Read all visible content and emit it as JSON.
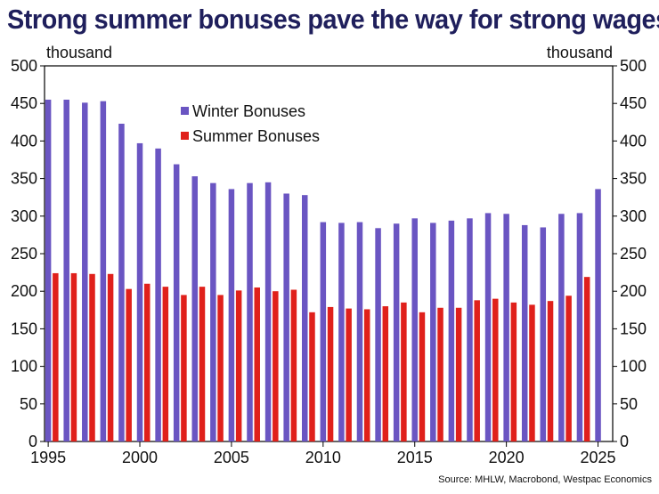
{
  "chart_data": {
    "type": "bar",
    "title": "Strong summer bonuses pave the way for strong wages",
    "y_unit_left": "thousand",
    "y_unit_right": "thousand",
    "ylim": [
      0,
      500
    ],
    "y_ticks": [
      0,
      50,
      100,
      150,
      200,
      250,
      300,
      350,
      400,
      450,
      500
    ],
    "x_tick_labels": [
      "1995",
      "2000",
      "2005",
      "2010",
      "2015",
      "2020",
      "2025"
    ],
    "x_tick_values": [
      1995,
      2000,
      2005,
      2010,
      2015,
      2020,
      2025
    ],
    "grid": false,
    "legend_position": "top-center",
    "source": "Source: MHLW, Macrobond, Westpac Economics",
    "series": [
      {
        "name": "Winter Bonuses",
        "color": "#6a55c2",
        "points": [
          [
            1995.0,
            455
          ],
          [
            1996.0,
            455
          ],
          [
            1997.0,
            451
          ],
          [
            1998.0,
            453
          ],
          [
            1999.0,
            423
          ],
          [
            2000.0,
            397
          ],
          [
            2001.0,
            390
          ],
          [
            2002.0,
            369
          ],
          [
            2003.0,
            353
          ],
          [
            2004.0,
            344
          ],
          [
            2005.0,
            336
          ],
          [
            2006.0,
            344
          ],
          [
            2007.0,
            345
          ],
          [
            2008.0,
            330
          ],
          [
            2009.0,
            328
          ],
          [
            2010.0,
            292
          ],
          [
            2011.0,
            291
          ],
          [
            2012.0,
            292
          ],
          [
            2013.0,
            284
          ],
          [
            2014.0,
            290
          ],
          [
            2015.0,
            297
          ],
          [
            2016.0,
            291
          ],
          [
            2017.0,
            294
          ],
          [
            2018.0,
            297
          ],
          [
            2019.0,
            304
          ],
          [
            2020.0,
            303
          ],
          [
            2021.0,
            288
          ],
          [
            2022.0,
            285
          ],
          [
            2023.0,
            303
          ],
          [
            2024.0,
            304
          ],
          [
            2025.0,
            336
          ]
        ]
      },
      {
        "name": "Summer Bonuses",
        "color": "#e0201b",
        "points": [
          [
            1995.4,
            224
          ],
          [
            1996.4,
            224
          ],
          [
            1997.4,
            223
          ],
          [
            1998.4,
            223
          ],
          [
            1999.4,
            203
          ],
          [
            2000.4,
            210
          ],
          [
            2001.4,
            206
          ],
          [
            2002.4,
            195
          ],
          [
            2003.4,
            206
          ],
          [
            2004.4,
            195
          ],
          [
            2005.4,
            201
          ],
          [
            2006.4,
            205
          ],
          [
            2007.4,
            200
          ],
          [
            2008.4,
            202
          ],
          [
            2009.4,
            172
          ],
          [
            2010.4,
            179
          ],
          [
            2011.4,
            177
          ],
          [
            2012.4,
            176
          ],
          [
            2013.4,
            180
          ],
          [
            2014.4,
            185
          ],
          [
            2015.4,
            172
          ],
          [
            2016.4,
            178
          ],
          [
            2017.4,
            178
          ],
          [
            2018.4,
            188
          ],
          [
            2019.4,
            190
          ],
          [
            2020.4,
            185
          ],
          [
            2021.4,
            182
          ],
          [
            2022.4,
            187
          ],
          [
            2023.4,
            194
          ],
          [
            2024.4,
            219
          ]
        ]
      }
    ]
  }
}
